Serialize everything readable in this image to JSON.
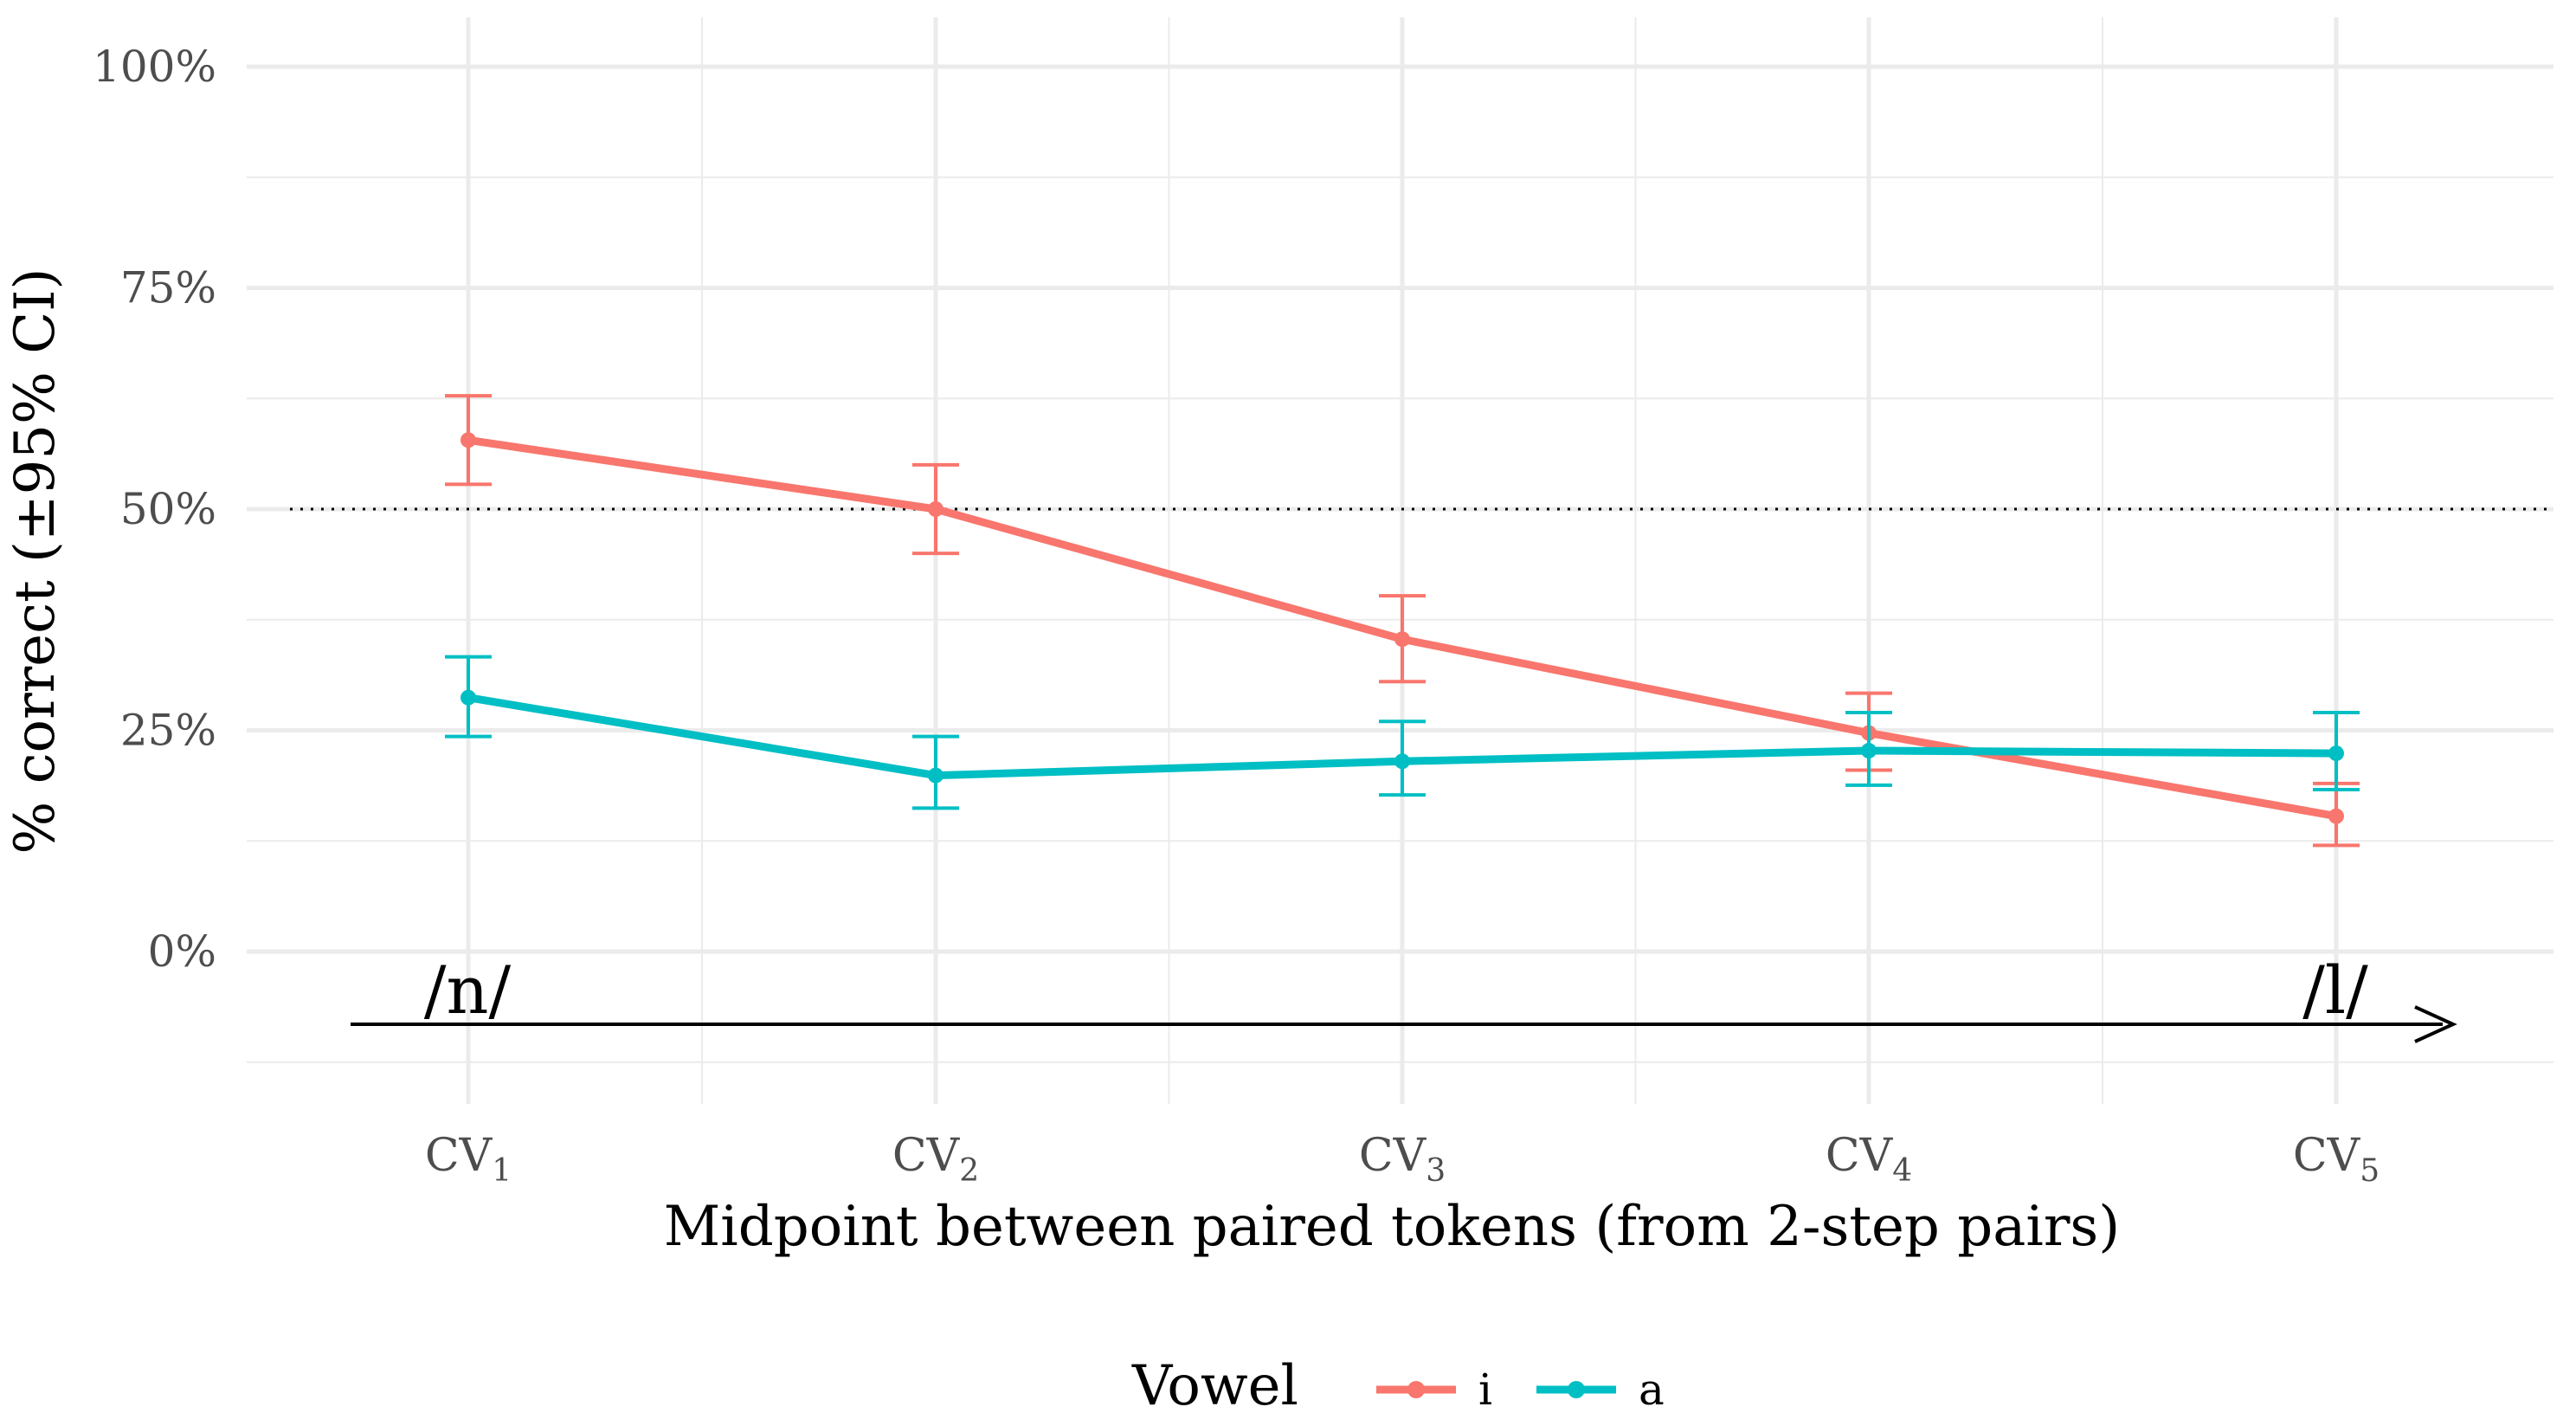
{
  "chart_data": {
    "type": "line",
    "title": "",
    "xlabel": "Midpoint between paired tokens (from 2-step pairs)",
    "ylabel": "% correct (±95% CI)",
    "categories": [
      {
        "base": "CV",
        "sub": "1"
      },
      {
        "base": "CV",
        "sub": "2"
      },
      {
        "base": "CV",
        "sub": "3"
      },
      {
        "base": "CV",
        "sub": "4"
      },
      {
        "base": "CV",
        "sub": "5"
      }
    ],
    "ylim": [
      -0.12,
      1.0
    ],
    "yticks": [
      0,
      0.25,
      0.5,
      0.75,
      1.0
    ],
    "ytick_labels": [
      "0%",
      "25%",
      "50%",
      "75%",
      "100%"
    ],
    "reference_line": {
      "y": 0.5,
      "style": "dotted"
    },
    "series": [
      {
        "name": "i",
        "color": "#F8766D",
        "values": [
          0.578,
          0.5,
          0.353,
          0.247,
          0.153
        ],
        "ci_low": [
          0.528,
          0.45,
          0.305,
          0.205,
          0.12
        ],
        "ci_high": [
          0.628,
          0.55,
          0.402,
          0.292,
          0.19
        ]
      },
      {
        "name": "a",
        "color": "#00BFC4",
        "values": [
          0.287,
          0.199,
          0.215,
          0.227,
          0.224
        ],
        "ci_low": [
          0.243,
          0.162,
          0.177,
          0.188,
          0.183
        ],
        "ci_high": [
          0.333,
          0.243,
          0.26,
          0.27,
          0.27
        ]
      }
    ],
    "continuum": {
      "start": "/n/",
      "end": "/l/"
    },
    "legend": {
      "title": "Vowel",
      "position": "bottom"
    },
    "grid": true
  }
}
